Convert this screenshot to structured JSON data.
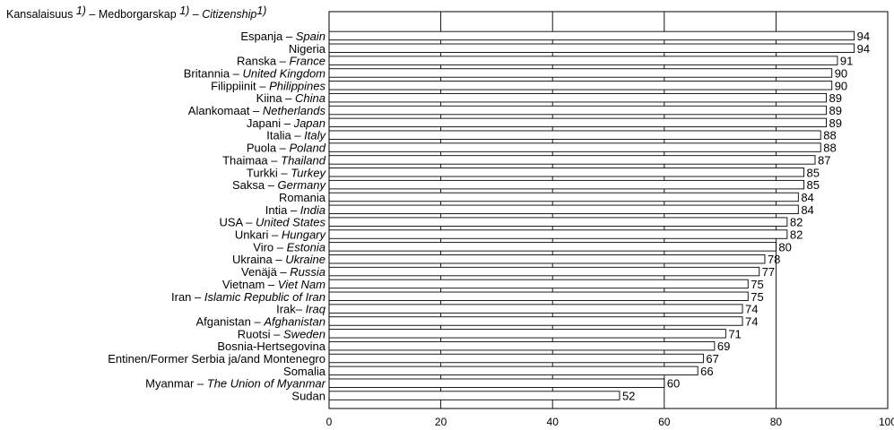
{
  "chart_data": {
    "type": "bar",
    "orientation": "horizontal",
    "header": {
      "fi": "Kansalaisuus",
      "sv": "Medborgarskap",
      "en": "Citizenship",
      "note": "1)",
      "sep": " – "
    },
    "categories": [
      {
        "fi": "Espanja",
        "en": "Spain"
      },
      {
        "fi": "Nigeria",
        "en": ""
      },
      {
        "fi": "Ranska",
        "en": "France"
      },
      {
        "fi": "Britannia",
        "en": "United Kingdom"
      },
      {
        "fi": "Filippiinit",
        "en": "Philippines"
      },
      {
        "fi": "Kiina",
        "en": "China"
      },
      {
        "fi": "Alankomaat",
        "en": "Netherlands"
      },
      {
        "fi": "Japani",
        "en": "Japan"
      },
      {
        "fi": "Italia",
        "en": "Italy"
      },
      {
        "fi": "Puola",
        "en": "Poland"
      },
      {
        "fi": "Thaimaa",
        "en": "Thailand"
      },
      {
        "fi": "Turkki",
        "en": "Turkey"
      },
      {
        "fi": "Saksa",
        "en": "Germany"
      },
      {
        "fi": "Romania",
        "en": ""
      },
      {
        "fi": "Intia",
        "en": "India"
      },
      {
        "fi": "USA",
        "en": "United States"
      },
      {
        "fi": "Unkari",
        "en": "Hungary"
      },
      {
        "fi": "Viro",
        "en": "Estonia"
      },
      {
        "fi": "Ukraina",
        "en": "Ukraine"
      },
      {
        "fi": "Venäjä",
        "en": "Russia"
      },
      {
        "fi": "Vietnam",
        "en": "Viet Nam"
      },
      {
        "fi": "Iran",
        "en": "Islamic Republic of Iran"
      },
      {
        "fi": "Irak",
        "en": "Iraq",
        "sep": "– "
      },
      {
        "fi": "Afganistan",
        "en": "Afghanistan"
      },
      {
        "fi": "Ruotsi",
        "en": "Sweden"
      },
      {
        "fi": "Bosnia-Hertsegovina",
        "en": ""
      },
      {
        "fi": "Entinen/Former Serbia ja/and Montenegro",
        "en": ""
      },
      {
        "fi": "Somalia",
        "en": ""
      },
      {
        "fi": "Myanmar",
        "en": "The Union of Myanmar"
      },
      {
        "fi": "Sudan",
        "en": ""
      }
    ],
    "values": [
      94,
      94,
      91,
      90,
      90,
      89,
      89,
      89,
      88,
      88,
      87,
      85,
      85,
      84,
      84,
      82,
      82,
      80,
      78,
      77,
      75,
      75,
      74,
      74,
      71,
      69,
      67,
      66,
      60,
      52
    ],
    "xlim": [
      0,
      100
    ],
    "xticks": [
      0,
      20,
      40,
      60,
      80,
      100
    ],
    "grid": true,
    "colors": {
      "bar_fill": "#ffffff",
      "stroke": "#000000",
      "background": "#ffffff"
    }
  }
}
